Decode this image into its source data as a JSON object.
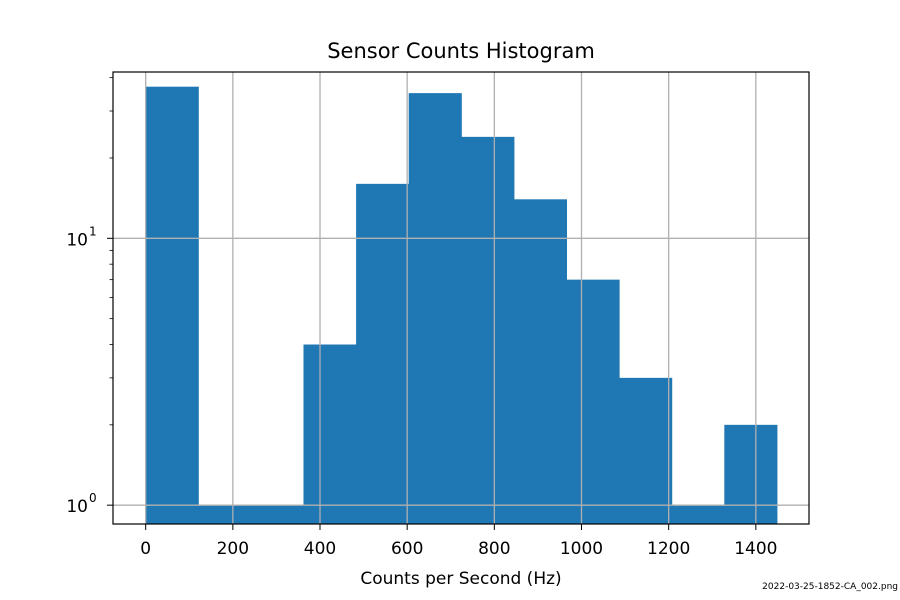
{
  "chart_data": {
    "type": "bar",
    "title": "Sensor Counts Histogram",
    "xlabel": "Counts per Second (Hz)",
    "ylabel": "",
    "bin_edges": [
      0,
      120.7,
      241.4,
      362.1,
      482.8,
      603.5,
      724.2,
      844.9,
      965.6,
      1086.3,
      1207,
      1327.7,
      1448.4
    ],
    "values": [
      37,
      1,
      1,
      4,
      16,
      35,
      24,
      14,
      7,
      3,
      1,
      2
    ],
    "xlim": [
      -75,
      1522
    ],
    "ylim": [
      0.85,
      42
    ],
    "yscale": "log",
    "x_ticks": [
      0,
      200,
      400,
      600,
      800,
      1000,
      1200,
      1400
    ],
    "x_tick_labels": [
      "0",
      "200",
      "400",
      "600",
      "800",
      "1000",
      "1200",
      "1400"
    ],
    "y_ticks": [
      {
        "value": 1,
        "base": "10",
        "exponent": "0"
      },
      {
        "value": 10,
        "base": "10",
        "exponent": "1"
      }
    ],
    "grid": true,
    "bar_color": "#1f77b4",
    "grid_color": "#b0b0b0",
    "file_label": "2022-03-25-1852-CA_002.png"
  }
}
